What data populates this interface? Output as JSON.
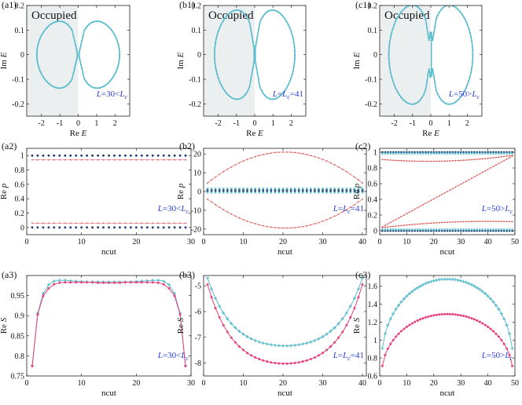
{
  "colors": {
    "cyan": "#5bbccd",
    "red": "#d9534f",
    "pink": "#e8407e",
    "navy": "#1a3c6e",
    "shade": "#eceff0",
    "blue_text": "#2b3ed6",
    "axis": "#222222"
  },
  "chart_data": [
    {
      "id": "a1",
      "type": "scatter",
      "panel_label": "(a1)",
      "xlabel": "Re E",
      "ylabel": "Im E",
      "xlim": [
        -2.8,
        2.8
      ],
      "ylim": [
        -0.25,
        0.2
      ],
      "xticks": [
        -2,
        -1,
        0,
        1,
        2
      ],
      "yticks": [
        -0.2,
        -0.1,
        0,
        0.1,
        0.2
      ],
      "xtick_labels": [
        "-2",
        "-1",
        "0",
        "1",
        "2"
      ],
      "ytick_labels": [
        "-0.2",
        "-0.1",
        "0",
        "0.1",
        "0.2"
      ],
      "annotation": "L=30<Lc",
      "shaded_label": "Occupied",
      "shaded_range": [
        -2.8,
        0
      ],
      "loops": [
        {
          "cx": -1.15,
          "rx": 1.1,
          "ry": 0.135,
          "inner": -0.05,
          "gap": 0.0
        },
        {
          "cx": 1.15,
          "rx": 1.1,
          "ry": 0.135,
          "inner": 0.05,
          "gap": 0.0
        }
      ]
    },
    {
      "id": "b1",
      "type": "scatter",
      "panel_label": "(b1)",
      "xlabel": "Re E",
      "ylabel": "Im E",
      "xlim": [
        -2.8,
        2.8
      ],
      "ylim": [
        -0.25,
        0.2
      ],
      "xticks": [
        -2,
        -1,
        0,
        1,
        2
      ],
      "yticks": [
        -0.2,
        -0.1,
        0,
        0.1,
        0.2
      ],
      "xtick_labels": [
        "-2",
        "-1",
        "0",
        "1",
        "2"
      ],
      "ytick_labels": [
        "-0.2",
        "-0.1",
        "0",
        "0.1",
        "0.2"
      ],
      "annotation": "L=Lc=41",
      "shaded_label": "Occupied",
      "shaded_range": [
        -2.8,
        0
      ],
      "loops": [
        {
          "cx": -1.1,
          "rx": 1.1,
          "ry": 0.18,
          "inner": 0.0,
          "gap": 0.0
        },
        {
          "cx": 1.1,
          "rx": 1.1,
          "ry": 0.18,
          "inner": 0.0,
          "gap": 0.0
        }
      ]
    },
    {
      "id": "c1",
      "type": "scatter",
      "panel_label": "(c1)",
      "xlabel": "Re E",
      "ylabel": "Im E",
      "xlim": [
        -2.8,
        2.8
      ],
      "ylim": [
        -0.25,
        0.2
      ],
      "xticks": [
        -2,
        -1,
        0,
        1,
        2
      ],
      "yticks": [
        -0.2,
        -0.1,
        0,
        0.1,
        0.2
      ],
      "xtick_labels": [
        "-2",
        "-1",
        "0",
        "1",
        "2"
      ],
      "ytick_labels": [
        "-0.2",
        "-0.1",
        "0",
        "0.1",
        "0.2"
      ],
      "annotation": "L=50>Lc",
      "shaded_label": "Occupied",
      "shaded_range": [
        -2.8,
        0
      ],
      "loops": [
        {
          "cx": -1.15,
          "rx": 1.15,
          "ry": 0.2,
          "inner": 0.0,
          "gap": 0.09
        },
        {
          "cx": 1.15,
          "rx": 1.15,
          "ry": 0.2,
          "inner": 0.0,
          "gap": 0.09
        }
      ]
    },
    {
      "id": "a2",
      "type": "scatter",
      "panel_label": "(a2)",
      "xlabel": "ncut",
      "ylabel": "Re p",
      "xlim": [
        0,
        30
      ],
      "ylim": [
        -0.1,
        1.1
      ],
      "xticks": [
        0,
        10,
        20,
        30
      ],
      "yticks": [
        0,
        0.2,
        0.4,
        0.6,
        0.8,
        1
      ],
      "xtick_labels": [
        "0",
        "10",
        "20",
        "30"
      ],
      "ytick_labels": [
        "0",
        "0.2",
        "0.4",
        "0.6",
        "0.8",
        "1"
      ],
      "annotation": "L=30<Lc",
      "series": [
        {
          "name": "upper-dark",
          "color": "navy",
          "n0": 1,
          "n1": 29,
          "shape": "const",
          "a": 1.0
        },
        {
          "name": "upper-red",
          "color": "red",
          "n0": 1,
          "n1": 29,
          "shape": "const",
          "a": 0.94
        },
        {
          "name": "lower-red",
          "color": "red",
          "n0": 1,
          "n1": 29,
          "shape": "const",
          "a": 0.06
        },
        {
          "name": "lower-dark",
          "color": "navy",
          "n0": 1,
          "n1": 29,
          "shape": "const",
          "a": 0.0
        }
      ]
    },
    {
      "id": "b2",
      "type": "scatter",
      "panel_label": "(b2)",
      "xlabel": "ncut",
      "ylabel": "Re p",
      "xlim": [
        0,
        41
      ],
      "ylim": [
        -23,
        23
      ],
      "xticks": [
        0,
        10,
        20,
        30,
        40
      ],
      "yticks": [
        -20,
        -10,
        0,
        10,
        20
      ],
      "xtick_labels": [
        "0",
        "10",
        "20",
        "30",
        "40"
      ],
      "ytick_labels": [
        "-20",
        "-10",
        "0",
        "10",
        "20"
      ],
      "annotation": "L=Lc=41",
      "series": [
        {
          "name": "upper-red",
          "color": "red",
          "n0": 1,
          "n1": 40,
          "shape": "arc",
          "a": 4.5,
          "b": 21,
          "nmid": 20.5
        },
        {
          "name": "lower-red",
          "color": "red",
          "n0": 1,
          "n1": 40,
          "shape": "arc",
          "a": -4.0,
          "b": -19.5,
          "nmid": 20.5
        },
        {
          "name": "dark-1",
          "color": "navy",
          "n0": 1,
          "n1": 40,
          "shape": "const",
          "a": 1.0
        },
        {
          "name": "dark-0",
          "color": "navy",
          "n0": 1,
          "n1": 40,
          "shape": "const",
          "a": 0.0
        },
        {
          "name": "cyan-1",
          "color": "cyan",
          "n0": 1,
          "n1": 40,
          "shape": "const",
          "a": 1.5
        },
        {
          "name": "cyan-0",
          "color": "cyan",
          "n0": 1,
          "n1": 40,
          "shape": "const",
          "a": -0.5
        }
      ]
    },
    {
      "id": "c2",
      "type": "scatter",
      "panel_label": "(c2)",
      "xlabel": "ncut",
      "ylabel": "Re p",
      "xlim": [
        0,
        50
      ],
      "ylim": [
        -0.05,
        1.05
      ],
      "xticks": [
        0,
        10,
        20,
        30,
        40,
        50
      ],
      "yticks": [
        0,
        0.2,
        0.4,
        0.6,
        0.8,
        1
      ],
      "xtick_labels": [
        "0",
        "10",
        "20",
        "30",
        "40",
        "50"
      ],
      "ytick_labels": [
        "0",
        "0.2",
        "0.4",
        "0.6",
        "0.8",
        "1"
      ],
      "annotation": "L=50>Lc",
      "series": [
        {
          "name": "dark-1",
          "color": "navy",
          "n0": 1,
          "n1": 49,
          "shape": "const",
          "a": 1.0
        },
        {
          "name": "cyan-1",
          "color": "cyan",
          "n0": 1,
          "n1": 49,
          "shape": "const",
          "a": 0.985
        },
        {
          "name": "dark-0",
          "color": "navy",
          "n0": 1,
          "n1": 49,
          "shape": "const",
          "a": 0.0
        },
        {
          "name": "cyan-0",
          "color": "cyan",
          "n0": 1,
          "n1": 49,
          "shape": "const",
          "a": 0.015
        },
        {
          "name": "diag",
          "color": "red",
          "n0": 1,
          "n1": 49,
          "shape": "line",
          "a": 0.05,
          "b": 0.95
        },
        {
          "name": "upper-red",
          "color": "red",
          "n0": 1,
          "n1": 49,
          "shape": "arc",
          "a": 0.96,
          "b": 0.885,
          "nmid": 18
        },
        {
          "name": "lower-red",
          "color": "red",
          "n0": 1,
          "n1": 49,
          "shape": "arc",
          "a": 0.04,
          "b": 0.12,
          "nmid": 40
        }
      ]
    },
    {
      "id": "a3",
      "type": "line",
      "panel_label": "(a3)",
      "xlabel": "ncut",
      "ylabel": "Re S",
      "xlim": [
        0,
        30
      ],
      "ylim": [
        0.75,
        1.0
      ],
      "xticks": [
        0,
        10,
        20,
        30
      ],
      "yticks": [
        0.75,
        0.8,
        0.85,
        0.9,
        0.95
      ],
      "xtick_labels": [
        "0",
        "10",
        "20",
        "30"
      ],
      "ytick_labels": [
        "0.75",
        "0.8",
        "0.85",
        "0.9",
        "0.95"
      ],
      "annotation": "L=30<Lc",
      "series": [
        {
          "name": "cyan",
          "color": "cyan",
          "x": [
            1,
            2,
            3,
            4,
            5,
            6,
            7,
            8,
            9,
            10,
            11,
            12,
            13,
            14,
            15,
            16,
            17,
            18,
            19,
            20,
            21,
            22,
            23,
            24,
            25,
            26,
            27,
            28,
            29
          ],
          "y": [
            0.775,
            0.906,
            0.955,
            0.977,
            0.986,
            0.988,
            0.988,
            0.987,
            0.986,
            0.985,
            0.984,
            0.984,
            0.984,
            0.984,
            0.984,
            0.984,
            0.984,
            0.984,
            0.984,
            0.985,
            0.986,
            0.987,
            0.988,
            0.988,
            0.986,
            0.977,
            0.955,
            0.906,
            0.775
          ]
        },
        {
          "name": "pink",
          "color": "pink",
          "x": [
            1,
            2,
            3,
            4,
            5,
            6,
            7,
            8,
            9,
            10,
            11,
            12,
            13,
            14,
            15,
            16,
            17,
            18,
            19,
            20,
            21,
            22,
            23,
            24,
            25,
            26,
            27,
            28,
            29
          ],
          "y": [
            0.775,
            0.903,
            0.949,
            0.968,
            0.978,
            0.982,
            0.983,
            0.983,
            0.983,
            0.983,
            0.983,
            0.983,
            0.982,
            0.982,
            0.982,
            0.982,
            0.982,
            0.983,
            0.983,
            0.983,
            0.983,
            0.983,
            0.983,
            0.982,
            0.978,
            0.968,
            0.949,
            0.903,
            0.775
          ]
        }
      ]
    },
    {
      "id": "b3",
      "type": "line",
      "panel_label": "(b3)",
      "xlabel": "ncut",
      "ylabel": "Re S",
      "xlim": [
        0,
        41
      ],
      "ylim": [
        -8.5,
        -4.6
      ],
      "xticks": [
        0,
        10,
        20,
        30,
        40
      ],
      "yticks": [
        -8,
        -7,
        -6,
        -5
      ],
      "xtick_labels": [
        "0",
        "10",
        "20",
        "30",
        "40"
      ],
      "ytick_labels": [
        "-8",
        "-7",
        "-6",
        "-5"
      ],
      "annotation": "L=Lc=41",
      "series": [
        {
          "name": "cyan",
          "color": "cyan",
          "shape": "cosh",
          "n0": 1,
          "n1": 40,
          "nmid": 20.5,
          "ymin": -7.33,
          "yedge": -4.7
        },
        {
          "name": "pink",
          "color": "pink",
          "shape": "cosh",
          "n0": 1,
          "n1": 40,
          "nmid": 20.5,
          "ymin": -8.02,
          "yedge": -4.95
        }
      ]
    },
    {
      "id": "c3",
      "type": "line",
      "panel_label": "(c3)",
      "xlabel": "ncut",
      "ylabel": "Re S",
      "xlim": [
        0,
        50
      ],
      "ylim": [
        0.6,
        1.72
      ],
      "xticks": [
        0,
        10,
        20,
        30,
        40,
        50
      ],
      "yticks": [
        0.6,
        0.8,
        1,
        1.2,
        1.4,
        1.6
      ],
      "xtick_labels": [
        "0",
        "10",
        "20",
        "30",
        "40",
        "50"
      ],
      "ytick_labels": [
        "0.6",
        "0.8",
        "1",
        "1.2",
        "1.4",
        "1.6"
      ],
      "annotation": "L=50>Lc",
      "series": [
        {
          "name": "cyan",
          "color": "cyan",
          "shape": "dome",
          "n0": 1,
          "n1": 49,
          "nmid": 25,
          "ymax": 1.68,
          "yedge": 0.8
        },
        {
          "name": "pink",
          "color": "pink",
          "shape": "dome",
          "n0": 1,
          "n1": 49,
          "nmid": 25,
          "ymax": 1.29,
          "yedge": 0.63
        }
      ]
    }
  ]
}
